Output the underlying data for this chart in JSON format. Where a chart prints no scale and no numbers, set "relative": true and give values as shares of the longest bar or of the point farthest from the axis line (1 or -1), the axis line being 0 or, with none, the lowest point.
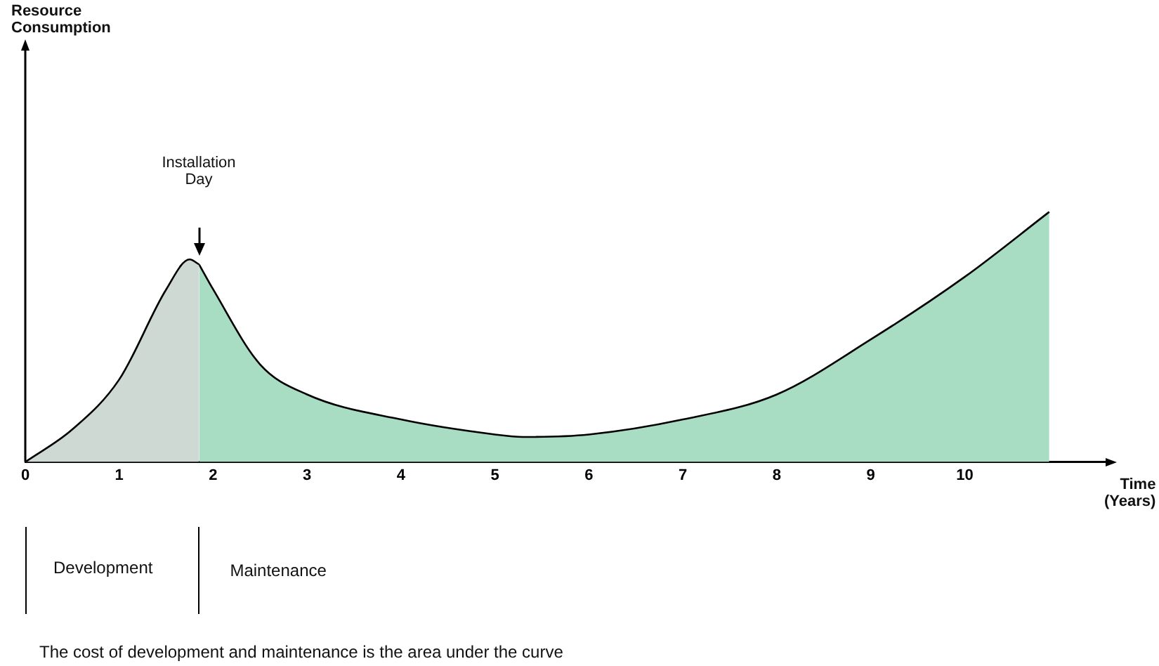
{
  "chart_data": {
    "type": "area",
    "relative": true,
    "xlabel": "Time\n(Years)",
    "xlim": [
      0,
      11.5
    ],
    "xticks": [
      0,
      1,
      2,
      3,
      4,
      5,
      6,
      7,
      8,
      9,
      10
    ],
    "series": [
      {
        "color": "#cdd9d2",
        "x": [
          0,
          0.5,
          1,
          1.5,
          1.75,
          1.85
        ],
        "values": [
          0,
          0.13,
          0.33,
          0.69,
          0.81,
          0.79
        ]
      },
      {
        "color": "#a8dcc3",
        "x": [
          1.85,
          2,
          2.5,
          3,
          4,
          5,
          5.3,
          6,
          7,
          8,
          9,
          10,
          10.9
        ],
        "values": [
          0.79,
          0.69,
          0.39,
          0.27,
          0.17,
          0.11,
          0.1,
          0.11,
          0.17,
          0.27,
          0.49,
          0.74,
          1
        ]
      }
    ],
    "annotations": [
      "Installation\nDay",
      "Development",
      "Maintenance",
      "The cost of development and maintenance is the area under the curve",
      "Resource\nConsumption"
    ]
  }
}
